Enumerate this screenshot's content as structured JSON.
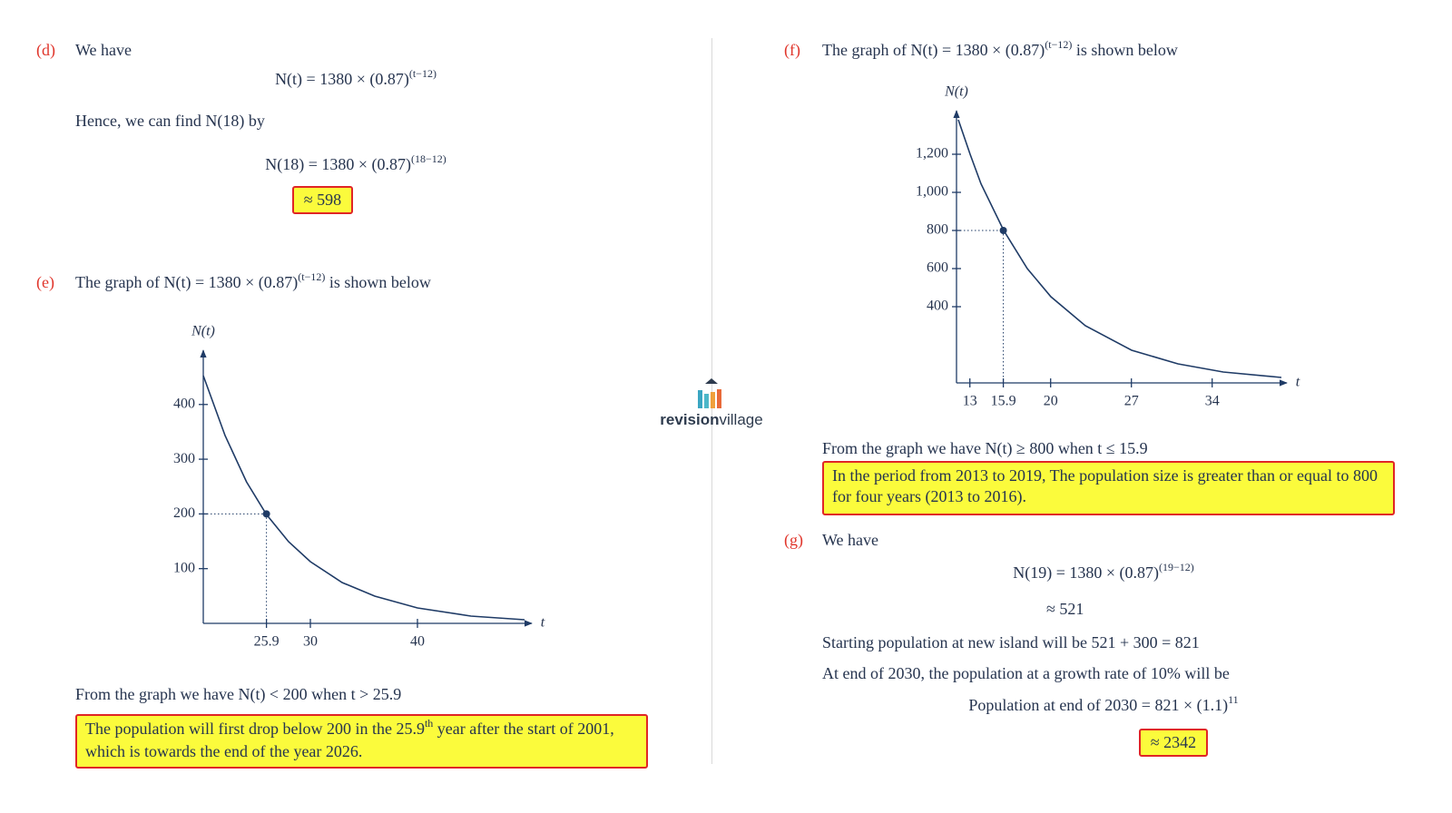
{
  "d": {
    "label": "(d)",
    "intro": "We have",
    "eq1": {
      "lhs": "N(t) = 1380 × (0.87)",
      "exp": "(t−12)"
    },
    "text2": "Hence, we can find N(18) by",
    "eq2": {
      "lhs": "N(18) = 1380 × (0.87)",
      "exp": "(18−12)"
    },
    "answer": "≈ 598"
  },
  "e": {
    "label": "(e)",
    "intro": "The graph of N(t) = 1380 × (0.87)",
    "intro_exp": "(t−12)",
    "intro_end": "is shown below",
    "graph": {
      "y_label": "N(t)",
      "x_label": "t",
      "xlim": [
        20,
        50
      ],
      "ylim": [
        0,
        490
      ],
      "xticks": [
        25.9,
        30,
        40
      ],
      "yticks": [
        100,
        200,
        300,
        400
      ]
    },
    "conclusion": "From the graph we have N(t) < 200 when t > 25.9",
    "answer": "The population will first drop below 200 in the 25.9",
    "answer_sup": "th",
    "answer_end": "year after the start of 2001, which is towards the end of the year 2026."
  },
  "f": {
    "label": "(f)",
    "intro": "The graph of N(t) = 1380 × (0.87)",
    "intro_exp": "(t−12)",
    "intro_end": "is shown below",
    "graph": {
      "y_label": "N(t)",
      "x_label": "t",
      "xlim": [
        12,
        40
      ],
      "ylim": [
        0,
        1420
      ],
      "xticks": [
        13,
        15.9,
        20,
        27,
        34
      ],
      "yticks": [
        {
          "value": 1200,
          "label": "1,200"
        },
        {
          "value": 1000,
          "label": "1,000"
        },
        800,
        600,
        400
      ]
    },
    "conclusion": "From the graph we have N(t) ≥ 800 when t ≤ 15.9",
    "answer": "In the period from 2013 to 2019, The population size is greater than or equal to 800 for four years (2013 to 2016)."
  },
  "g": {
    "label": "(g)",
    "intro": "We have",
    "eq1": {
      "lhs": "N(19) = 1380 × (0.87)",
      "exp": "(19−12)"
    },
    "eq2": "≈ 521",
    "line1": "Starting population at new island will be 521 + 300 = 821",
    "line2": "At end of 2030, the population at a growth rate of 10% will be",
    "eq3": {
      "lhs": "Population at end of 2030 = 821 × (1.1)",
      "exp": "11"
    },
    "answer": "≈ 2342"
  },
  "logo": {
    "bold": "revision",
    "light": "village"
  }
}
